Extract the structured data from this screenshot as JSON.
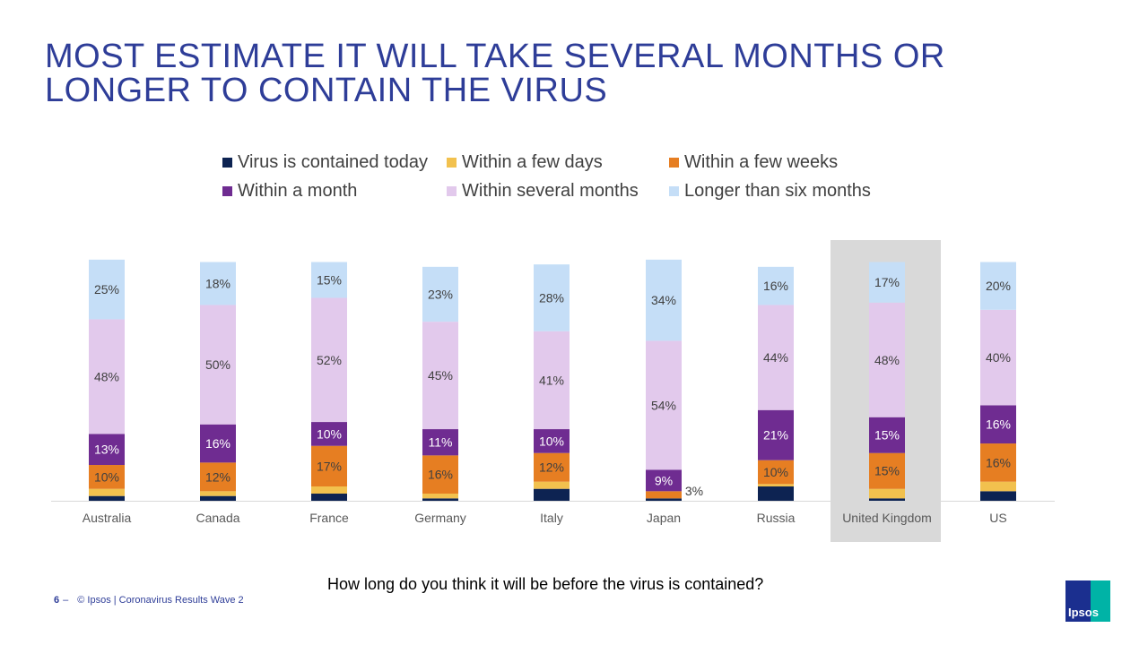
{
  "title_lines": [
    "MOST ESTIMATE IT WILL TAKE SEVERAL MONTHS OR",
    "LONGER TO CONTAIN THE VIRUS"
  ],
  "question": "How long do you think it will be before the virus is contained?",
  "footer": {
    "page": "6",
    "dash": "–",
    "text": "© Ipsos | Coronavirus Results Wave 2"
  },
  "logo_text": "Ipsos",
  "colors": {
    "Virus is contained today": "#0d2352",
    "Within a few days": "#f2c14e",
    "Within a few weeks": "#e67e22",
    "Within a month": "#6f2c91",
    "Within several months": "#e2c9ec",
    "Longer than six months": "#c5def7",
    "highlight": "#d9d9d9",
    "title": "#2e3d98"
  },
  "chart_data": {
    "type": "bar",
    "stacked": true,
    "categories": [
      "Australia",
      "Canada",
      "France",
      "Germany",
      "Italy",
      "Japan",
      "Russia",
      "United Kingdom",
      "US"
    ],
    "highlighted_category": "United Kingdom",
    "legend_position": "top",
    "series": [
      {
        "name": "Virus is contained today",
        "values": [
          2,
          2,
          3,
          1,
          5,
          1,
          6,
          1,
          4
        ]
      },
      {
        "name": "Within a few days",
        "values": [
          3,
          2,
          3,
          2,
          3,
          0,
          1,
          4,
          4
        ]
      },
      {
        "name": "Within a few weeks",
        "values": [
          10,
          12,
          17,
          16,
          12,
          3,
          10,
          15,
          16
        ]
      },
      {
        "name": "Within a month",
        "values": [
          13,
          16,
          10,
          11,
          10,
          9,
          21,
          15,
          16
        ]
      },
      {
        "name": "Within several months",
        "values": [
          48,
          50,
          52,
          45,
          41,
          54,
          44,
          48,
          40
        ]
      },
      {
        "name": "Longer than six months",
        "values": [
          25,
          18,
          15,
          23,
          28,
          34,
          16,
          17,
          20
        ]
      }
    ],
    "labeled_series": [
      "Within a few weeks",
      "Within a month",
      "Within several months",
      "Longer than six months"
    ],
    "labels": [
      [
        "",
        "",
        "10%",
        "13%",
        "48%",
        "25%"
      ],
      [
        "",
        "",
        "12%",
        "16%",
        "50%",
        "18%"
      ],
      [
        "",
        "",
        "17%",
        "10%",
        "52%",
        "15%"
      ],
      [
        "",
        "",
        "16%",
        "11%",
        "45%",
        "23%"
      ],
      [
        "",
        "",
        "12%",
        "10%",
        "41%",
        "28%"
      ],
      [
        "",
        "",
        "3%",
        "9%",
        "54%",
        "34%"
      ],
      [
        "",
        "",
        "10%",
        "21%",
        "44%",
        "16%"
      ],
      [
        "",
        "",
        "15%",
        "15%",
        "48%",
        "17%"
      ],
      [
        "",
        "",
        "16%",
        "16%",
        "40%",
        "20%"
      ]
    ]
  }
}
